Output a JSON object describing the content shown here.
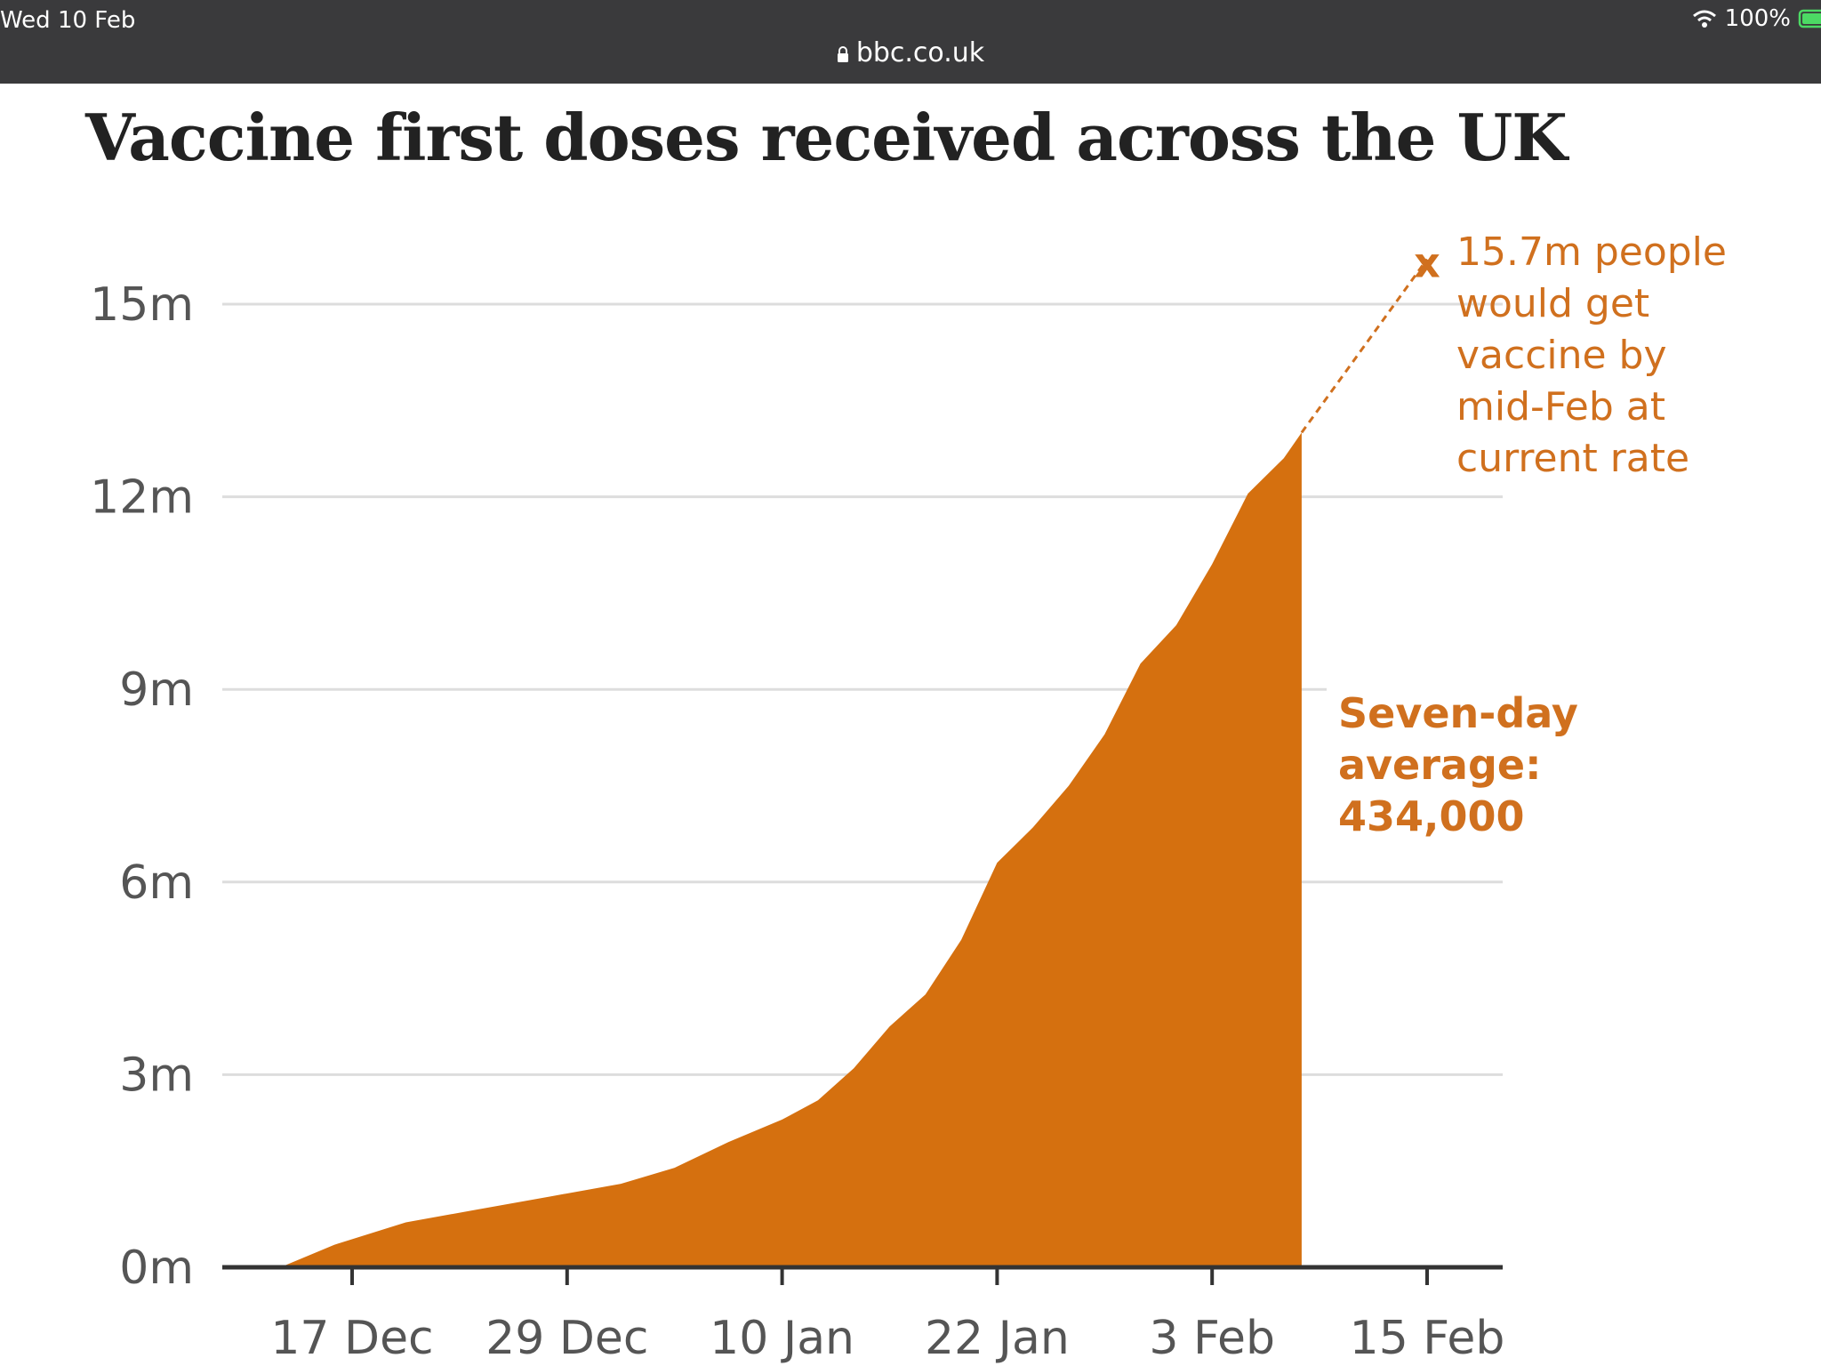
{
  "status_bar": {
    "time": "Wed 10 Feb",
    "url": "bbc.co.uk",
    "battery": "100%",
    "icons": [
      "wifi-icon",
      "battery-icon",
      "lock-icon"
    ]
  },
  "colors": {
    "area": "#d5700f",
    "annotation": "#d0701e",
    "grid": "#dddddd",
    "axis": "#333333",
    "status_bar": "#3a3a3c"
  },
  "chart_data": {
    "type": "area",
    "title": "Vaccine first doses received across the UK",
    "xlabel": "",
    "ylabel": "",
    "x_ticks": [
      "17 Dec",
      "29 Dec",
      "10 Jan",
      "22 Jan",
      "3 Feb",
      "15 Feb"
    ],
    "y_ticks": [
      "0m",
      "3m",
      "6m",
      "9m",
      "12m",
      "15m"
    ],
    "ylim": [
      0,
      15.8
    ],
    "xlim": [
      "2020-12-10",
      "2021-02-20"
    ],
    "grid": true,
    "series": [
      {
        "x": [
          "2020-12-13",
          "2020-12-16",
          "2020-12-20",
          "2020-12-24",
          "2020-12-28",
          "2021-01-01",
          "2021-01-04",
          "2021-01-07",
          "2021-01-10",
          "2021-01-12",
          "2021-01-14",
          "2021-01-16",
          "2021-01-18",
          "2021-01-20",
          "2021-01-22",
          "2021-01-24",
          "2021-01-26",
          "2021-01-28",
          "2021-01-30",
          "2021-02-01",
          "2021-02-03",
          "2021-02-05",
          "2021-02-07",
          "2021-02-08"
        ],
        "values": [
          0.0,
          0.35,
          0.7,
          0.9,
          1.1,
          1.3,
          1.55,
          1.95,
          2.3,
          2.6,
          3.1,
          3.75,
          4.25,
          5.1,
          6.3,
          6.85,
          7.5,
          8.3,
          9.4,
          10.0,
          10.95,
          12.05,
          12.6,
          13.0
        ]
      }
    ],
    "projection": {
      "from": {
        "x": "2021-02-08",
        "y": 13.0
      },
      "to": {
        "x": "2021-02-15",
        "y": 15.7
      },
      "marker": "x",
      "label_lines": [
        "15.7m people",
        "would get",
        "vaccine by",
        "mid-Feb at",
        "current rate"
      ]
    },
    "annotation": {
      "label_lines": [
        "Seven-day",
        "average:",
        "434,000"
      ]
    }
  }
}
